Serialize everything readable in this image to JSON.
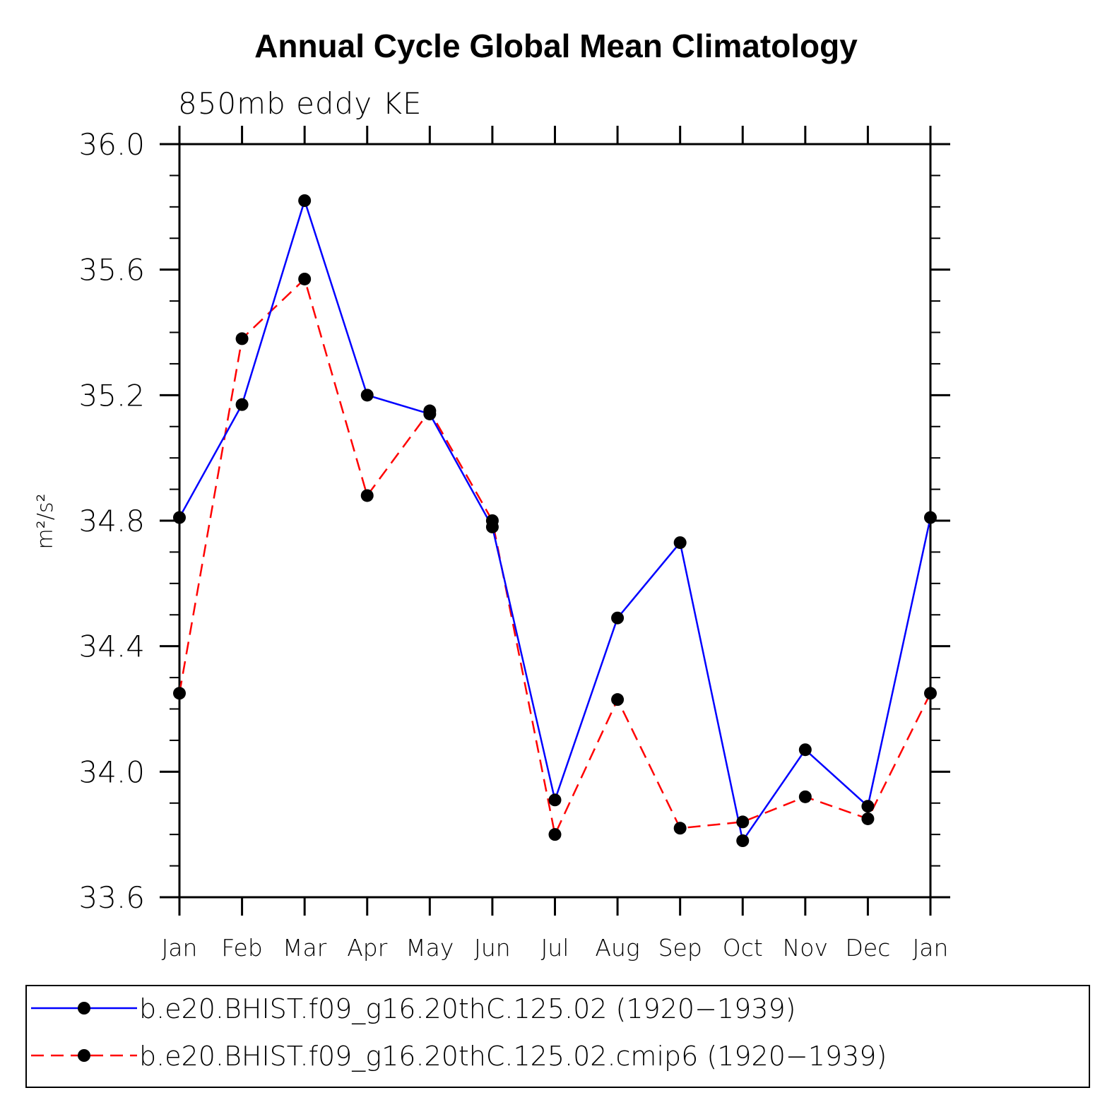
{
  "chart_data": {
    "type": "line",
    "title": "Annual Cycle Global Mean Climatology",
    "subtitle": "850mb eddy KE",
    "ylabel": "m²/s²",
    "xlabel": "",
    "categories": [
      "Jan",
      "Feb",
      "Mar",
      "Apr",
      "May",
      "Jun",
      "Jul",
      "Aug",
      "Sep",
      "Oct",
      "Nov",
      "Dec",
      "Jan"
    ],
    "ylim": [
      33.6,
      36.0
    ],
    "yticks": [
      "33.6",
      "34.0",
      "34.4",
      "34.8",
      "35.2",
      "35.6",
      "36.0"
    ],
    "series": [
      {
        "name": "b.e20.BHIST.f09_g16.20thC.125.02 (1920−1939)",
        "color": "#0000ff",
        "style": "solid",
        "marker": "filled-circle",
        "values": [
          34.81,
          35.17,
          35.82,
          35.2,
          35.14,
          34.78,
          33.91,
          34.49,
          34.73,
          33.78,
          34.07,
          33.89,
          34.81
        ]
      },
      {
        "name": "b.e20.BHIST.f09_g16.20thC.125.02.cmip6 (1920−1939)",
        "color": "#ff0000",
        "style": "dashed",
        "marker": "filled-circle",
        "values": [
          34.25,
          35.38,
          35.57,
          34.88,
          35.15,
          34.8,
          33.8,
          34.23,
          33.82,
          33.84,
          33.92,
          33.85,
          34.25
        ]
      }
    ],
    "grid": false,
    "legend_position": "bottom"
  }
}
